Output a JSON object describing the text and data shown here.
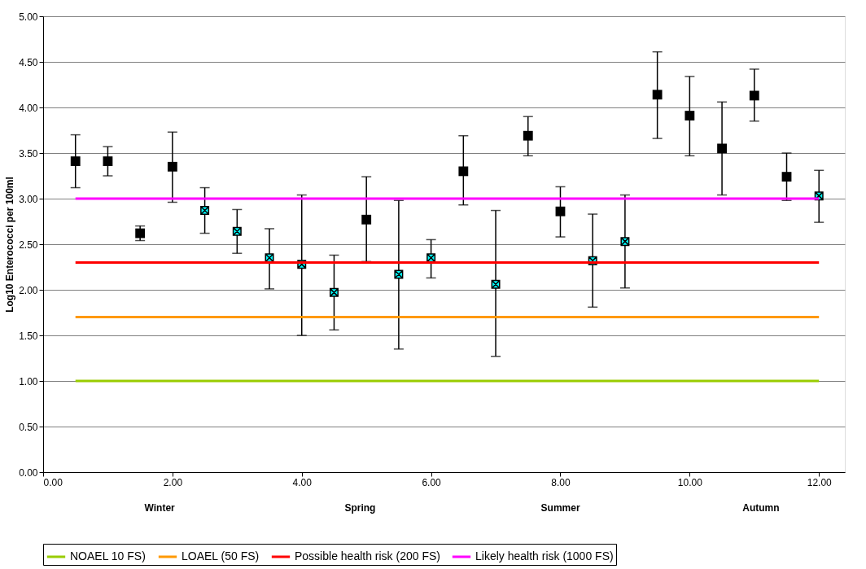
{
  "chart_data": {
    "type": "scatter",
    "ylabel": "Log10 Enterococci per 100ml",
    "xlim": [
      0,
      12.4
    ],
    "ylim": [
      0,
      5
    ],
    "xticks": [
      {
        "value": 0,
        "label": "0.00"
      },
      {
        "value": 2,
        "label": "2.00"
      },
      {
        "value": 4,
        "label": "4.00"
      },
      {
        "value": 6,
        "label": "6.00"
      },
      {
        "value": 8,
        "label": "8.00"
      },
      {
        "value": 10,
        "label": "10.00"
      },
      {
        "value": 12,
        "label": "12.00"
      }
    ],
    "yticks": [
      {
        "value": 0,
        "label": "0.00"
      },
      {
        "value": 0.5,
        "label": "0.50"
      },
      {
        "value": 1,
        "label": "1.00"
      },
      {
        "value": 1.5,
        "label": "1.50"
      },
      {
        "value": 2,
        "label": "2.00"
      },
      {
        "value": 2.5,
        "label": "2.50"
      },
      {
        "value": 3,
        "label": "3.00"
      },
      {
        "value": 3.5,
        "label": "3.50"
      },
      {
        "value": 4,
        "label": "4.00"
      },
      {
        "value": 4.5,
        "label": "4.50"
      },
      {
        "value": 5,
        "label": "5.00"
      }
    ],
    "grid": "y",
    "legend": "bottom",
    "series": [
      {
        "marker": "square",
        "color": "#000000",
        "x": [
          0.5,
          1.0,
          1.5,
          2.0,
          5.0,
          6.5,
          7.5,
          8.0,
          9.5,
          10.0,
          10.5,
          11.0,
          11.5
        ],
        "values": [
          3.41,
          3.41,
          2.62,
          3.35,
          2.77,
          3.3,
          3.69,
          2.86,
          4.14,
          3.91,
          3.55,
          4.13,
          3.24
        ],
        "errors": [
          [
            3.12,
            3.7
          ],
          [
            3.25,
            3.57
          ],
          [
            2.54,
            2.7
          ],
          [
            2.96,
            3.73
          ],
          [
            2.31,
            3.24
          ],
          [
            2.93,
            3.69
          ],
          [
            3.47,
            3.9
          ],
          [
            2.58,
            3.13
          ],
          [
            3.66,
            4.61
          ],
          [
            3.47,
            4.34
          ],
          [
            3.04,
            4.06
          ],
          [
            3.85,
            4.42
          ],
          [
            2.98,
            3.5
          ]
        ]
      },
      {
        "marker": "cross",
        "color": "#00ffff",
        "x": [
          2.5,
          3.0,
          3.5,
          4.0,
          4.5,
          5.5,
          6.0,
          7.0,
          8.5,
          9.0,
          12.0
        ],
        "values": [
          2.87,
          2.64,
          2.35,
          2.28,
          1.97,
          2.17,
          2.35,
          2.06,
          2.32,
          2.53,
          3.03
        ],
        "errors": [
          [
            2.62,
            3.12
          ],
          [
            2.4,
            2.88
          ],
          [
            2.01,
            2.67
          ],
          [
            1.5,
            3.04
          ],
          [
            1.56,
            2.38
          ],
          [
            1.35,
            2.98
          ],
          [
            2.13,
            2.55
          ],
          [
            1.27,
            2.87
          ],
          [
            1.81,
            2.83
          ],
          [
            2.02,
            3.04
          ],
          [
            2.74,
            3.31
          ]
        ]
      },
      {
        "type": "line",
        "name": "NOAEL 10 FS)",
        "color": "#99cc00",
        "x": [
          0.5,
          12
        ],
        "values": [
          1.0,
          1.0
        ]
      },
      {
        "type": "line",
        "name": "LOAEL (50 FS)",
        "color": "#ff9900",
        "x": [
          0.5,
          12
        ],
        "values": [
          1.7,
          1.7
        ]
      },
      {
        "type": "line",
        "name": "Possible health risk (200 FS)",
        "color": "#ff0000",
        "x": [
          0.5,
          12
        ],
        "values": [
          2.3,
          2.3
        ]
      },
      {
        "type": "line",
        "name": "Likely health risk (1000 FS)",
        "color": "#ff00ff",
        "x": [
          0.5,
          12
        ],
        "values": [
          3.0,
          3.0
        ]
      }
    ],
    "annotations": [
      "Winter",
      "Spring",
      "Summer",
      "Autumn"
    ]
  }
}
